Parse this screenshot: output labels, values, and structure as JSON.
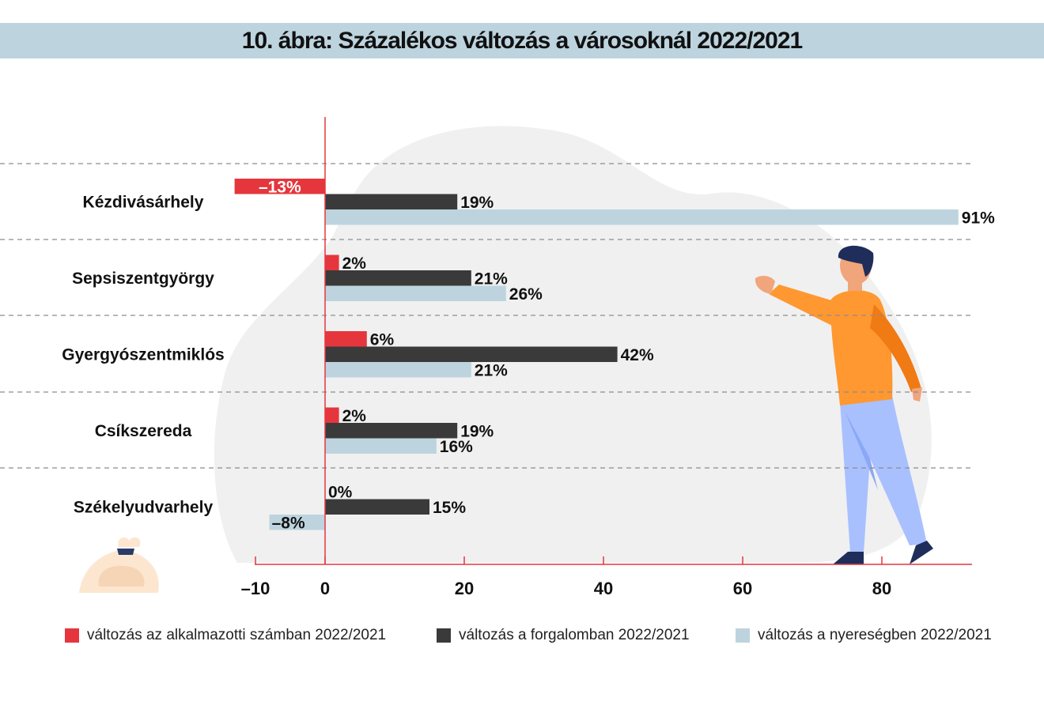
{
  "header": {
    "title": "10. ábra: Százalékos változás a városoknál 2022/2021"
  },
  "chart_data": {
    "type": "bar",
    "orientation": "horizontal",
    "categories": [
      "Kézdivásárhely",
      "Sepsiszentgyörgy",
      "Gyergyószentmiklós",
      "Csíkszereda",
      "Székelyudvarhely"
    ],
    "series": [
      {
        "name": "változás az alkalmazotti számban 2022/2021",
        "color": "#e5363d",
        "values": [
          -13,
          2,
          6,
          2,
          0
        ],
        "labels": [
          "–13%",
          "2%",
          "6%",
          "2%",
          "0%"
        ]
      },
      {
        "name": "változás a forgalomban 2022/2021",
        "color": "#3a3a3a",
        "values": [
          19,
          21,
          42,
          19,
          15
        ],
        "labels": [
          "19%",
          "21%",
          "42%",
          "19%",
          "15%"
        ]
      },
      {
        "name": "változás a nyereségben 2022/2021",
        "color": "#bdd4df",
        "values": [
          91,
          26,
          21,
          16,
          -8
        ],
        "labels": [
          "91%",
          "26%",
          "21%",
          "16%",
          "–8%"
        ]
      }
    ],
    "xticks": [
      -10,
      0,
      20,
      40,
      60,
      80
    ],
    "xtick_labels": [
      "–10",
      "0",
      "20",
      "40",
      "60",
      "80"
    ],
    "xlim": [
      -10,
      93
    ],
    "grid": false,
    "legend_position": "bottom"
  }
}
